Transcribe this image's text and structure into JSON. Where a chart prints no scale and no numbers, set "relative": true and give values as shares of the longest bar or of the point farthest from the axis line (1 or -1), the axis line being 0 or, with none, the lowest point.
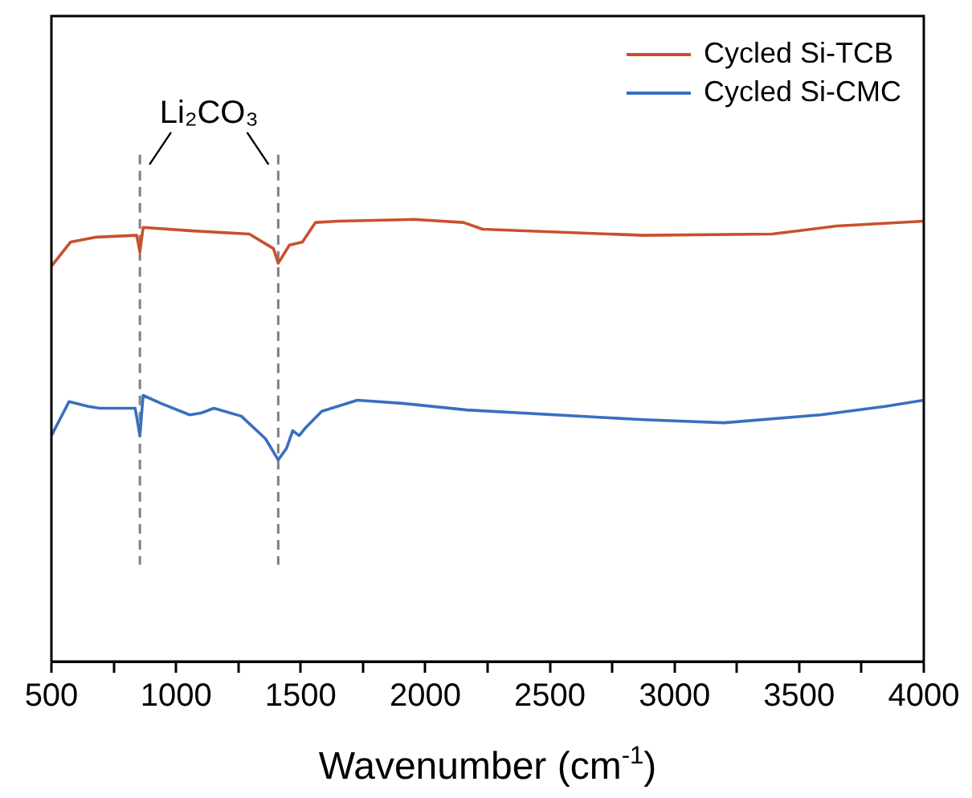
{
  "chart_data": {
    "type": "line",
    "relative": true,
    "xlabel": "Wavenumber (cm$^{-1}$)",
    "xlim": [
      500,
      4000
    ],
    "xticks": [
      500,
      {
        "value": 750,
        "label": null
      },
      1000,
      {
        "value": 1250,
        "label": null
      },
      1500,
      {
        "value": 1750,
        "label": null
      },
      2000,
      {
        "value": 2250,
        "label": null
      },
      2500,
      {
        "value": 2750,
        "label": null
      },
      3000,
      {
        "value": 3250,
        "label": null
      },
      3500,
      {
        "value": 3750,
        "label": null
      },
      4000
    ],
    "grid": false,
    "legend": "top right",
    "tick_labels": "x",
    "marker": "none",
    "line_style": "solid",
    "series": [
      {
        "name": "Cycled Si-TCB",
        "color": "#c8502d",
        "x": [
          500,
          577,
          681,
          842,
          855,
          868,
          1068,
          1294,
          1391,
          1410,
          1455,
          1507,
          1559,
          1649,
          1953,
          2153,
          2230,
          2876,
          3392,
          3650,
          4000
        ],
        "values": [
          0.894,
          0.949,
          0.96,
          0.964,
          0.927,
          0.982,
          0.974,
          0.967,
          0.934,
          0.901,
          0.942,
          0.949,
          0.993,
          0.996,
          1,
          0.993,
          0.978,
          0.964,
          0.967,
          0.985,
          0.996
        ]
      },
      {
        "name": "Cycled Si-CMC",
        "color": "#3a6fbf",
        "x": [
          500,
          571,
          648,
          694,
          836,
          855,
          868,
          939,
          1055,
          1100,
          1152,
          1262,
          1359,
          1410,
          1443,
          1468,
          1494,
          1520,
          1585,
          1727,
          1907,
          2166,
          2876,
          3199,
          3586,
          3844,
          4000
        ],
        "values": [
          0.511,
          0.588,
          0.577,
          0.573,
          0.573,
          0.511,
          0.602,
          0.584,
          0.558,
          0.562,
          0.573,
          0.555,
          0.504,
          0.456,
          0.482,
          0.522,
          0.511,
          0.529,
          0.566,
          0.591,
          0.584,
          0.569,
          0.547,
          0.54,
          0.558,
          0.577,
          0.591
        ]
      }
    ],
    "ref_lines": [
      {
        "axis": "x",
        "value": 855,
        "color": "#808080",
        "line_style": "dashed"
      },
      {
        "axis": "x",
        "value": 1410,
        "color": "#808080",
        "line_style": "dashed"
      }
    ],
    "annotations": [
      "Li₂CO₃"
    ]
  }
}
